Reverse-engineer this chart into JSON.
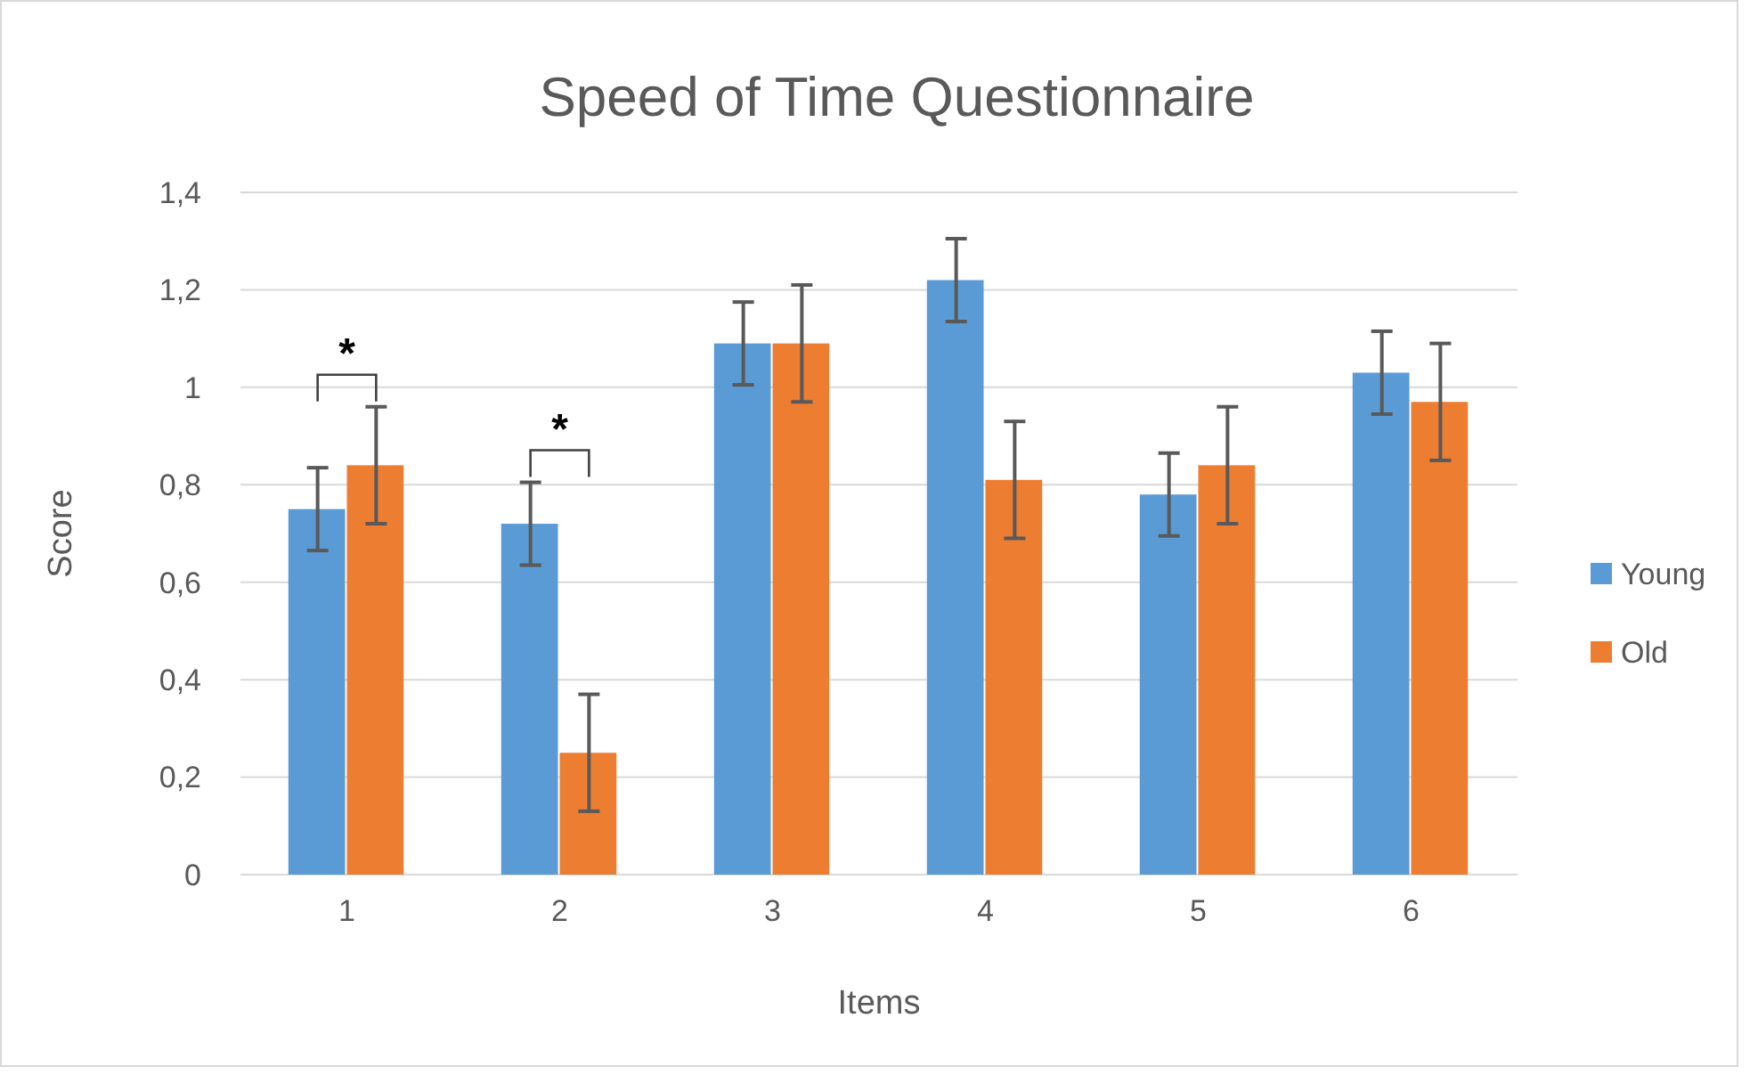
{
  "chart_data": {
    "type": "bar",
    "title": "Speed of Time Questionnaire",
    "xlabel": "Items",
    "ylabel": "Score",
    "categories": [
      "1",
      "2",
      "3",
      "4",
      "5",
      "6"
    ],
    "series": [
      {
        "name": "Young",
        "color": "#5b9bd5",
        "values": [
          0.75,
          0.72,
          1.09,
          1.22,
          0.78,
          1.03
        ],
        "errors": [
          0.085,
          0.085,
          0.085,
          0.085,
          0.085,
          0.085
        ]
      },
      {
        "name": "Old",
        "color": "#ed7d31",
        "values": [
          0.84,
          0.25,
          1.09,
          0.81,
          0.84,
          0.97
        ],
        "errors": [
          0.12,
          0.12,
          0.12,
          0.12,
          0.12,
          0.12
        ]
      }
    ],
    "ylim": [
      0,
      1.4
    ],
    "yticks": [
      {
        "value": 0,
        "label": "0"
      },
      {
        "value": 0.2,
        "label": "0,2"
      },
      {
        "value": 0.4,
        "label": "0,4"
      },
      {
        "value": 0.6,
        "label": "0,6"
      },
      {
        "value": 0.8,
        "label": "0,8"
      },
      {
        "value": 1,
        "label": "1"
      },
      {
        "value": 1.2,
        "label": "1,2"
      },
      {
        "value": 1.4,
        "label": "1,4"
      }
    ],
    "grid": "y",
    "legend": "right",
    "annotations": [
      "*",
      "*"
    ]
  }
}
